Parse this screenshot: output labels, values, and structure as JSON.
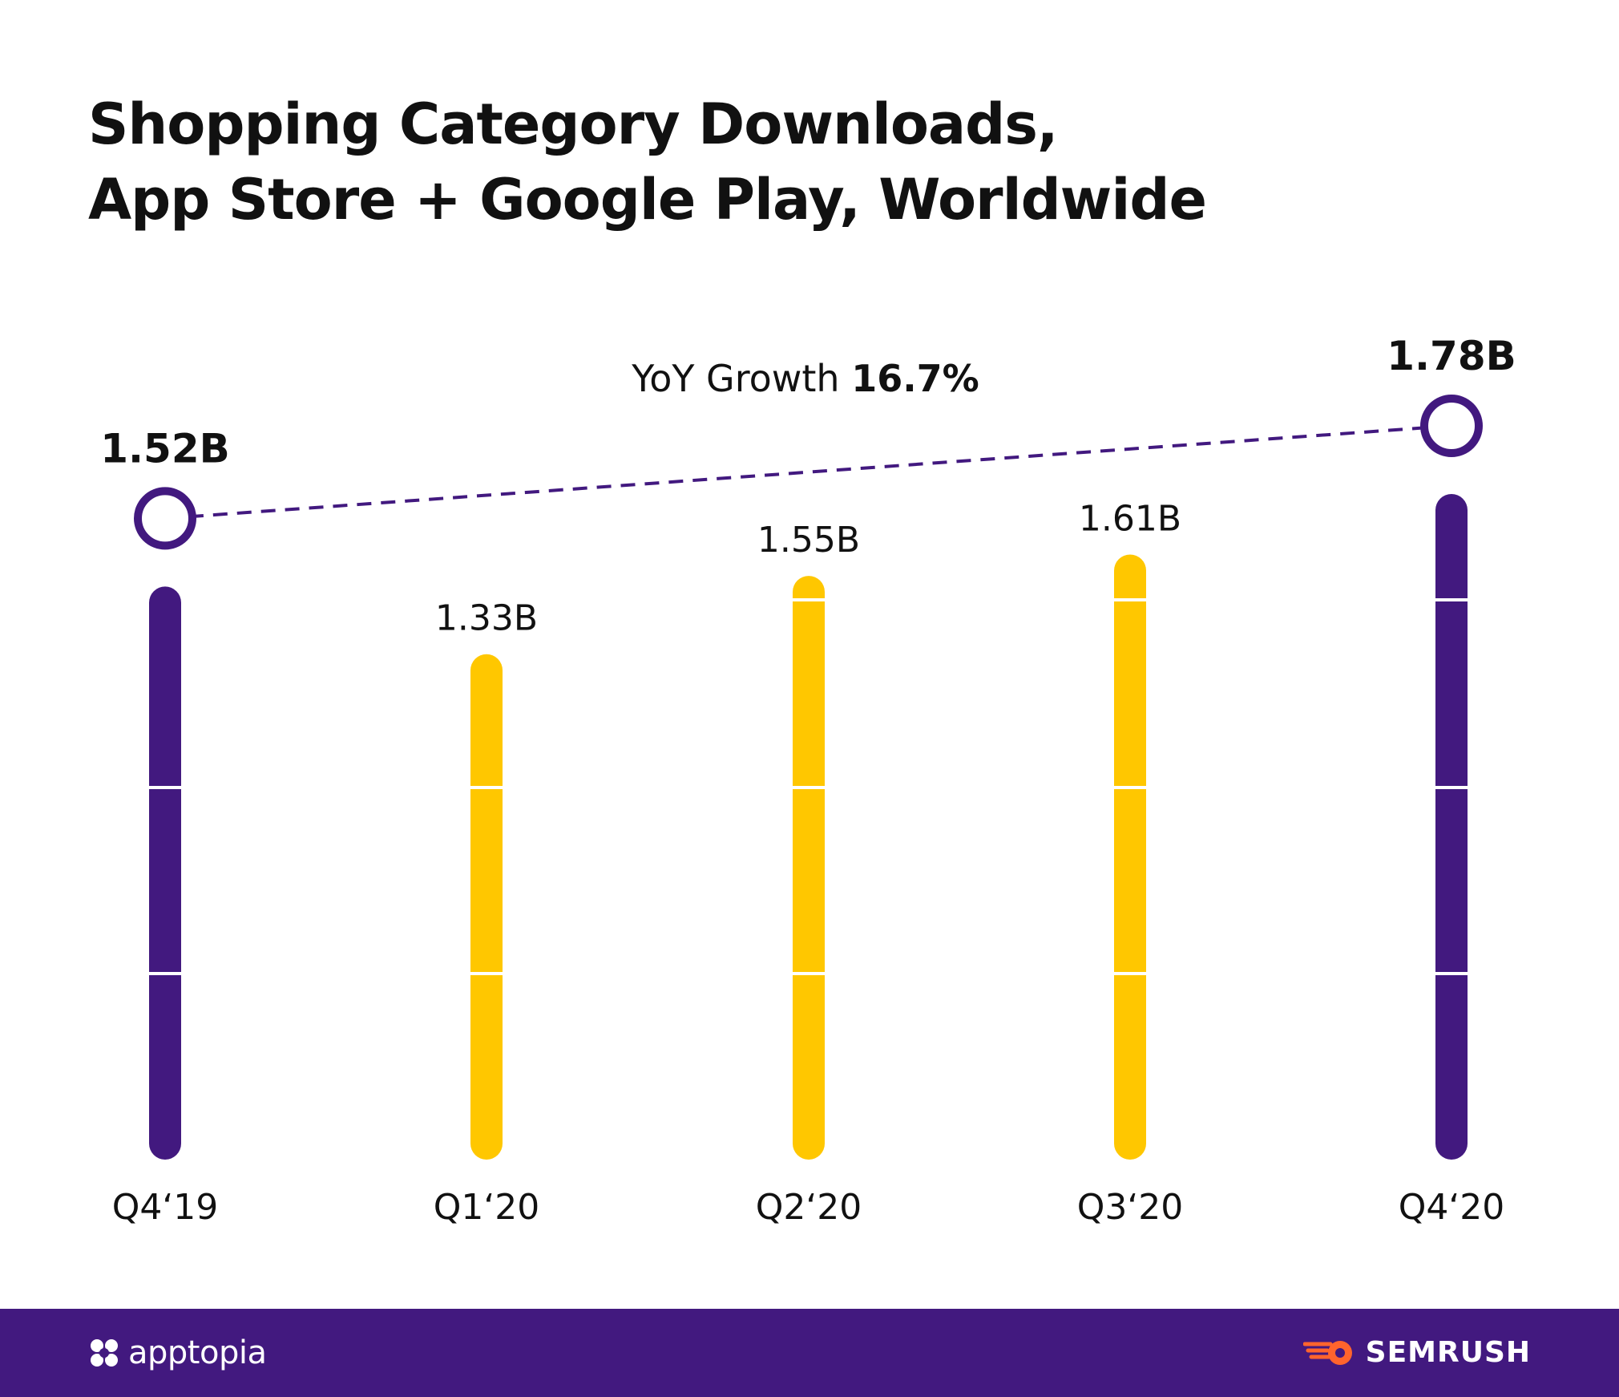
{
  "title_lines": [
    "Shopping Category Downloads,",
    "App Store + Google Play, Worldwide"
  ],
  "chart_data": {
    "type": "bar",
    "title": "Shopping Category Downloads, App Store + Google Play, Worldwide",
    "categories": [
      "Q4‘19",
      "Q1‘20",
      "Q2‘20",
      "Q3‘20",
      "Q4‘20"
    ],
    "values": [
      1.52,
      1.33,
      1.55,
      1.61,
      1.78
    ],
    "value_labels": [
      "1.52B",
      "1.33B",
      "1.55B",
      "1.61B",
      "1.78B"
    ],
    "unit": "B",
    "ylim": [
      0,
      1.78
    ],
    "grid": false,
    "bar_colors": [
      "#42197f",
      "#ffc700",
      "#ffc700",
      "#ffc700",
      "#42197f"
    ],
    "highlighted_bars": [
      0,
      4
    ],
    "comparison": {
      "from": "Q4‘19",
      "to": "Q4‘20",
      "label_prefix": "YoY Growth",
      "label_value": "16.7%"
    }
  },
  "colors": {
    "purple": "#42197f",
    "yellow": "#ffc700",
    "text": "#111111",
    "white": "#ffffff",
    "semrush_orange": "#ff642d"
  },
  "footer": {
    "left_brand": "apptopia",
    "left_icon": "apptopia-logo-icon",
    "right_brand": "SEMRUSH",
    "right_icon": "semrush-logo-icon"
  }
}
